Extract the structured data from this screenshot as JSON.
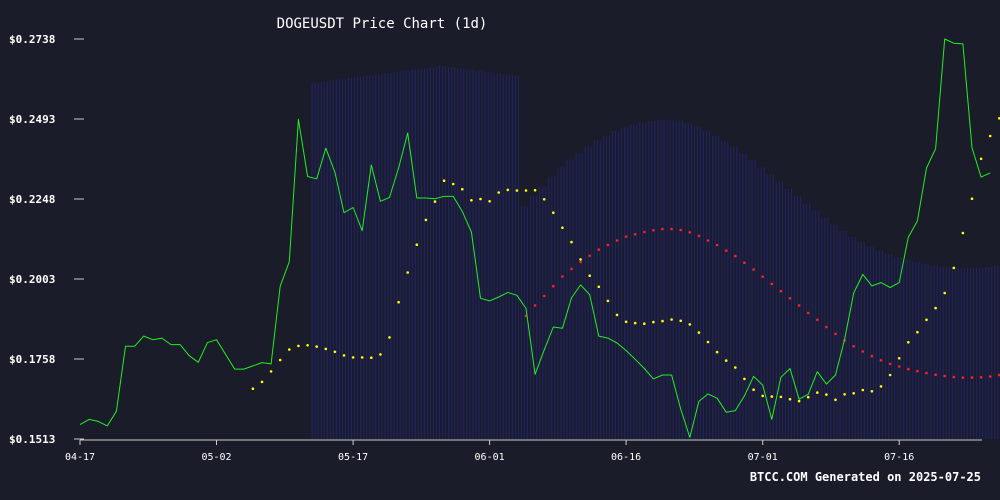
{
  "page": {
    "footer": "BTCC.COM Generated on 2025-07-25"
  },
  "colors": {
    "background": "#1a1d29",
    "price": "#22ee22",
    "ma_short": "#ffff00",
    "ma_long": "#ff2020",
    "band": "#2828a0",
    "axis": "#cccccc",
    "text": "#ffffff"
  },
  "chart_data": {
    "type": "line",
    "title": "DOGEUSDT Price Chart (1d)",
    "xlabel": "",
    "ylabel": "",
    "x_start": "2025-04-17",
    "x_end": "2025-07-24",
    "x_ticks": [
      "04-17",
      "05-02",
      "05-17",
      "06-01",
      "06-16",
      "07-01",
      "07-16"
    ],
    "y_ticks": [
      "$0.2738",
      "$0.2493",
      "$0.2248",
      "$0.2003",
      "$0.1758",
      "$0.1513"
    ],
    "ylim": [
      0.1513,
      0.2738
    ],
    "grid": false,
    "legend": "none",
    "series": [
      {
        "key": "price",
        "style": "line",
        "values": [
          0.1557,
          0.1573,
          0.1567,
          0.1553,
          0.1598,
          0.1797,
          0.1797,
          0.1828,
          0.1817,
          0.1822,
          0.1802,
          0.1802,
          0.1768,
          0.1748,
          0.1808,
          0.1817,
          0.1772,
          0.1727,
          0.1727,
          0.1737,
          0.1747,
          0.1743,
          0.1981,
          0.2056,
          0.2492,
          0.2317,
          0.231,
          0.2404,
          0.233,
          0.2206,
          0.2222,
          0.2151,
          0.2352,
          0.2241,
          0.2253,
          0.2343,
          0.245,
          0.2251,
          0.2251,
          0.2249,
          0.2256,
          0.2256,
          0.221,
          0.2147,
          0.1944,
          0.1936,
          0.1948,
          0.1962,
          0.1953,
          0.1913,
          0.1711,
          0.1786,
          0.1856,
          0.1852,
          0.1945,
          0.1985,
          0.1955,
          0.1828,
          0.1822,
          0.1807,
          0.1784,
          0.1757,
          0.1729,
          0.1697,
          0.1709,
          0.1709,
          0.1605,
          0.1518,
          0.1628,
          0.1651,
          0.1638,
          0.1595,
          0.16,
          0.1645,
          0.1705,
          0.1678,
          0.1573,
          0.1702,
          0.1729,
          0.1635,
          0.165,
          0.1719,
          0.1681,
          0.1709,
          0.1818,
          0.196,
          0.2017,
          0.1982,
          0.1992,
          0.1977,
          0.1992,
          0.2131,
          0.2181,
          0.2343,
          0.2402,
          0.2738,
          0.2725,
          0.2723,
          0.2405,
          0.2315,
          0.2328
        ]
      },
      {
        "key": "ma_short",
        "style": "dots",
        "start_index": 19,
        "values": [
          0.1667,
          0.1688,
          0.172,
          0.1755,
          0.1787,
          0.1798,
          0.18,
          0.1796,
          0.1789,
          0.178,
          0.1769,
          0.1763,
          0.1763,
          0.1762,
          0.1772,
          0.1824,
          0.1932,
          0.2023,
          0.2108,
          0.2184,
          0.224,
          0.2304,
          0.2294,
          0.2278,
          0.2244,
          0.2248,
          0.2241,
          0.2268,
          0.2276,
          0.2274,
          0.2274,
          0.2275,
          0.2247,
          0.2206,
          0.216,
          0.2116,
          0.2063,
          0.2013,
          0.1979,
          0.1936,
          0.1893,
          0.1872,
          0.1868,
          0.1866,
          0.1871,
          0.1874,
          0.1879,
          0.1875,
          0.1864,
          0.1839,
          0.181,
          0.1779,
          0.1753,
          0.1732,
          0.1697,
          0.1664,
          0.1645,
          0.1643,
          0.1642,
          0.1635,
          0.1629,
          0.1641,
          0.1655,
          0.1649,
          0.1633,
          0.165,
          0.1653,
          0.1663,
          0.1659,
          0.1674,
          0.1709,
          0.176,
          0.1809,
          0.184,
          0.1878,
          0.1914,
          0.196,
          0.2037,
          0.2144,
          0.2249,
          0.2371,
          0.2441,
          0.2495,
          0.248
        ]
      },
      {
        "key": "ma_long",
        "style": "dots",
        "start_index": 49,
        "values": [
          0.189,
          0.1922,
          0.1951,
          0.1981,
          0.2011,
          0.2034,
          0.2055,
          0.2074,
          0.2093,
          0.2107,
          0.2121,
          0.2133,
          0.214,
          0.2147,
          0.2152,
          0.2156,
          0.2156,
          0.2153,
          0.2146,
          0.2135,
          0.2121,
          0.2107,
          0.209,
          0.2073,
          0.2053,
          0.2032,
          0.201,
          0.1988,
          0.1966,
          0.1944,
          0.1922,
          0.1899,
          0.1878,
          0.1856,
          0.1835,
          0.1815,
          0.1797,
          0.1781,
          0.1767,
          0.1754,
          0.1743,
          0.1735,
          0.1727,
          0.1721,
          0.1715,
          0.171,
          0.1706,
          0.1703,
          0.1701,
          0.1701,
          0.1702,
          0.1704,
          0.1709,
          0.1716,
          0.1725,
          0.1737,
          0.1753,
          0.1774,
          0.1799,
          0.1826,
          0.1855,
          0.1887,
          0.1917,
          0.1948,
          0.1976,
          0.1993
        ]
      }
    ]
  }
}
